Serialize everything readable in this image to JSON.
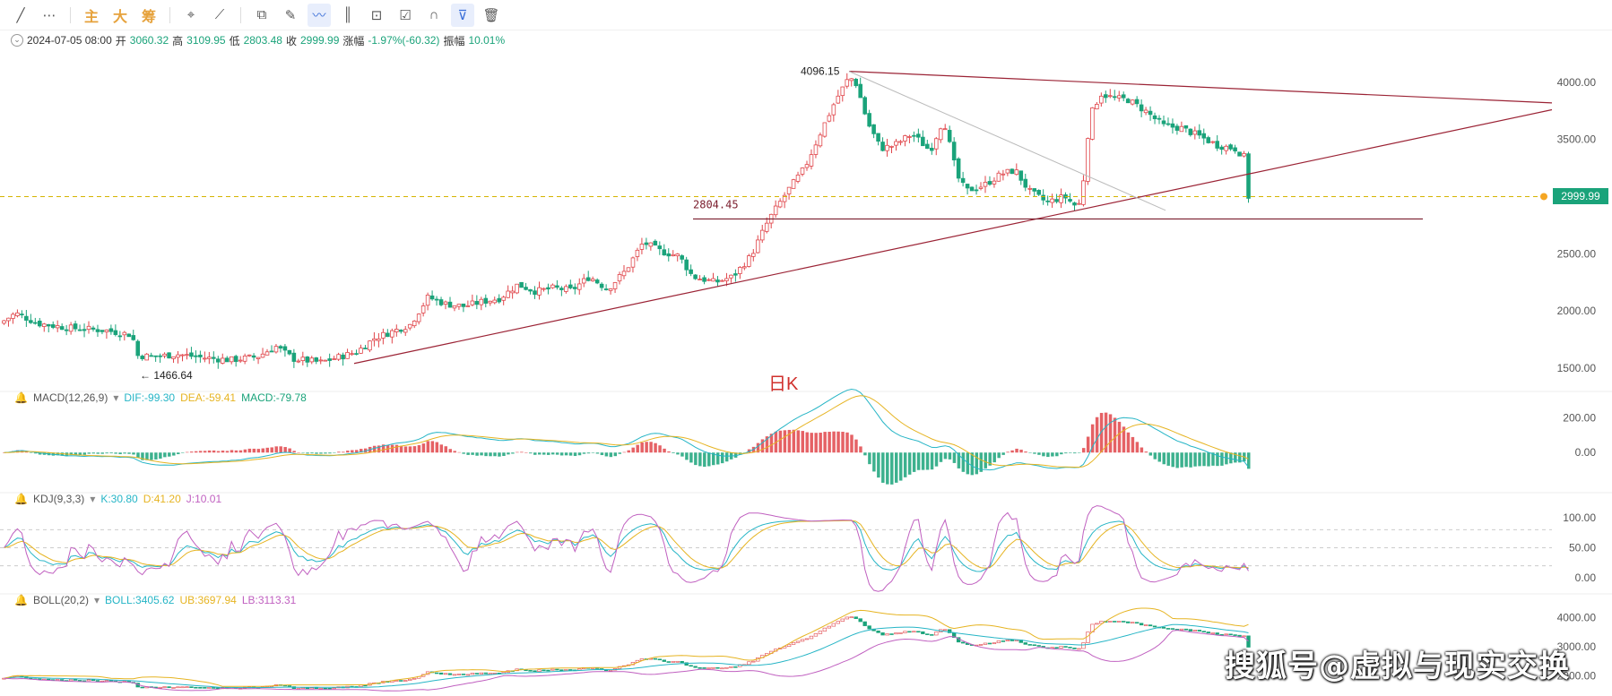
{
  "toolbar": {
    "items": [
      {
        "icon": "trend-line-icon"
      },
      {
        "icon": "more-icon",
        "glyph": "⋯"
      },
      {
        "text": "主"
      },
      {
        "text": "大"
      },
      {
        "text": "筹"
      },
      {
        "icon": "crosshair-icon",
        "glyph": "⌖"
      },
      {
        "icon": "measure-icon",
        "glyph": "⟋"
      },
      {
        "icon": "copy-icon",
        "glyph": "⧉"
      },
      {
        "icon": "ruler-icon",
        "glyph": "✎"
      },
      {
        "icon": "draw-icon",
        "glyph": "〰",
        "active": true
      },
      {
        "icon": "candle-icon",
        "glyph": "║"
      },
      {
        "icon": "lock-icon",
        "glyph": "⊡"
      },
      {
        "icon": "edit-icon",
        "glyph": "☑"
      },
      {
        "icon": "magnet-icon",
        "glyph": "∩"
      },
      {
        "icon": "filter-icon",
        "glyph": "⊽",
        "active": true
      },
      {
        "icon": "trash-icon",
        "glyph": "🗑"
      }
    ]
  },
  "ohlc": {
    "date": "2024-07-05 08:00",
    "open_label": "开",
    "open": "3060.32",
    "high_label": "高",
    "high": "3109.95",
    "low_label": "低",
    "low": "2803.48",
    "close_label": "收",
    "close": "2999.99",
    "change_label": "涨幅",
    "change": "-1.97%(-60.32)",
    "amp_label": "振幅",
    "amp": "10.01%"
  },
  "macd_head": {
    "name": "MACD(12,26,9)",
    "dif": "DIF:-99.30",
    "dea": "DEA:-59.41",
    "macd": "MACD:-79.78"
  },
  "kdj_head": {
    "name": "KDJ(9,3,3)",
    "k": "K:30.80",
    "d": "D:41.20",
    "j": "J:10.01"
  },
  "boll_head": {
    "name": "BOLL(20,2)",
    "boll": "BOLL:3405.62",
    "ub": "UB:3697.94",
    "lb": "LB:3113.31"
  },
  "annotations": {
    "high_label": "4096.15",
    "low_label": "← 1466.64",
    "support_label": "2804.45",
    "period_label": "日K",
    "current_price": "2999.99"
  },
  "watermark": "搜狐号@虚拟与现实交换",
  "colors": {
    "up": "#e0454a",
    "down": "#1aa37a",
    "trendline": "#9b2335",
    "dif": "#26b5c6",
    "dea": "#e6b422",
    "k": "#26b5c6",
    "d": "#e6b422",
    "j": "#c060c0"
  },
  "chart_data": {
    "type": "candlestick",
    "main": {
      "yaxis_ticks": [
        "4000.00",
        "3500.00",
        "3000.00",
        "2500.00",
        "2000.00",
        "1500.00"
      ],
      "ylim": [
        1350,
        4250
      ],
      "guide_points": [
        [
          0,
          1880
        ],
        [
          20,
          1980
        ],
        [
          45,
          1890
        ],
        [
          80,
          1850
        ],
        [
          120,
          1830
        ],
        [
          150,
          1790
        ],
        [
          155,
          1610
        ],
        [
          175,
          1600
        ],
        [
          200,
          1620
        ],
        [
          230,
          1590
        ],
        [
          260,
          1570
        ],
        [
          290,
          1600
        ],
        [
          310,
          1690
        ],
        [
          330,
          1580
        ],
        [
          360,
          1550
        ],
        [
          400,
          1640
        ],
        [
          420,
          1760
        ],
        [
          440,
          1820
        ],
        [
          460,
          1880
        ],
        [
          480,
          2120
        ],
        [
          500,
          2060
        ],
        [
          520,
          2040
        ],
        [
          540,
          2080
        ],
        [
          560,
          2110
        ],
        [
          580,
          2230
        ],
        [
          600,
          2170
        ],
        [
          620,
          2200
        ],
        [
          640,
          2180
        ],
        [
          660,
          2300
        ],
        [
          680,
          2190
        ],
        [
          700,
          2350
        ],
        [
          720,
          2600
        ],
        [
          740,
          2520
        ],
        [
          760,
          2480
        ],
        [
          775,
          2300
        ],
        [
          800,
          2250
        ],
        [
          820,
          2300
        ],
        [
          840,
          2480
        ],
        [
          860,
          2800
        ],
        [
          880,
          3040
        ],
        [
          900,
          3250
        ],
        [
          920,
          3600
        ],
        [
          935,
          3850
        ],
        [
          950,
          4050
        ],
        [
          958,
          3980
        ],
        [
          970,
          3650
        ],
        [
          985,
          3420
        ],
        [
          1000,
          3450
        ],
        [
          1020,
          3550
        ],
        [
          1040,
          3400
        ],
        [
          1055,
          3680
        ],
        [
          1070,
          3180
        ],
        [
          1080,
          3050
        ],
        [
          1100,
          3100
        ],
        [
          1120,
          3200
        ],
        [
          1135,
          3230
        ],
        [
          1150,
          3050
        ],
        [
          1170,
          2950
        ],
        [
          1190,
          3000
        ],
        [
          1205,
          2900
        ],
        [
          1210,
          3080
        ],
        [
          1218,
          3700
        ],
        [
          1230,
          3900
        ],
        [
          1245,
          3860
        ],
        [
          1260,
          3850
        ],
        [
          1280,
          3750
        ],
        [
          1300,
          3620
        ],
        [
          1320,
          3600
        ],
        [
          1340,
          3530
        ],
        [
          1360,
          3450
        ],
        [
          1380,
          3420
        ],
        [
          1390,
          3350
        ],
        [
          1395,
          3000
        ]
      ],
      "candles": 280
    },
    "trendlines": [
      {
        "from": [
          947,
          4096.15
        ],
        "to": [
          1731,
          3820
        ]
      },
      {
        "from": [
          395,
          1540
        ],
        "to": [
          1731,
          3760
        ]
      },
      {
        "from": [
          947,
          4096.15
        ],
        "to": [
          1300,
          2880
        ],
        "style": "thin-gray"
      },
      {
        "hline": 2804.45,
        "x_from": 773,
        "x_to": 1587
      }
    ],
    "macd": {
      "yaxis_ticks": [
        "200.00",
        "0.00"
      ],
      "ylim": [
        -180,
        260
      ]
    },
    "kdj": {
      "yaxis_ticks": [
        "100.00",
        "50.00",
        "0.00"
      ],
      "ylim": [
        -15,
        115
      ],
      "levels": [
        80,
        50,
        20
      ]
    },
    "boll": {
      "yaxis_ticks": [
        "4000.00",
        "3000.00",
        "2000.00"
      ],
      "ylim": [
        1300,
        4300
      ]
    }
  }
}
